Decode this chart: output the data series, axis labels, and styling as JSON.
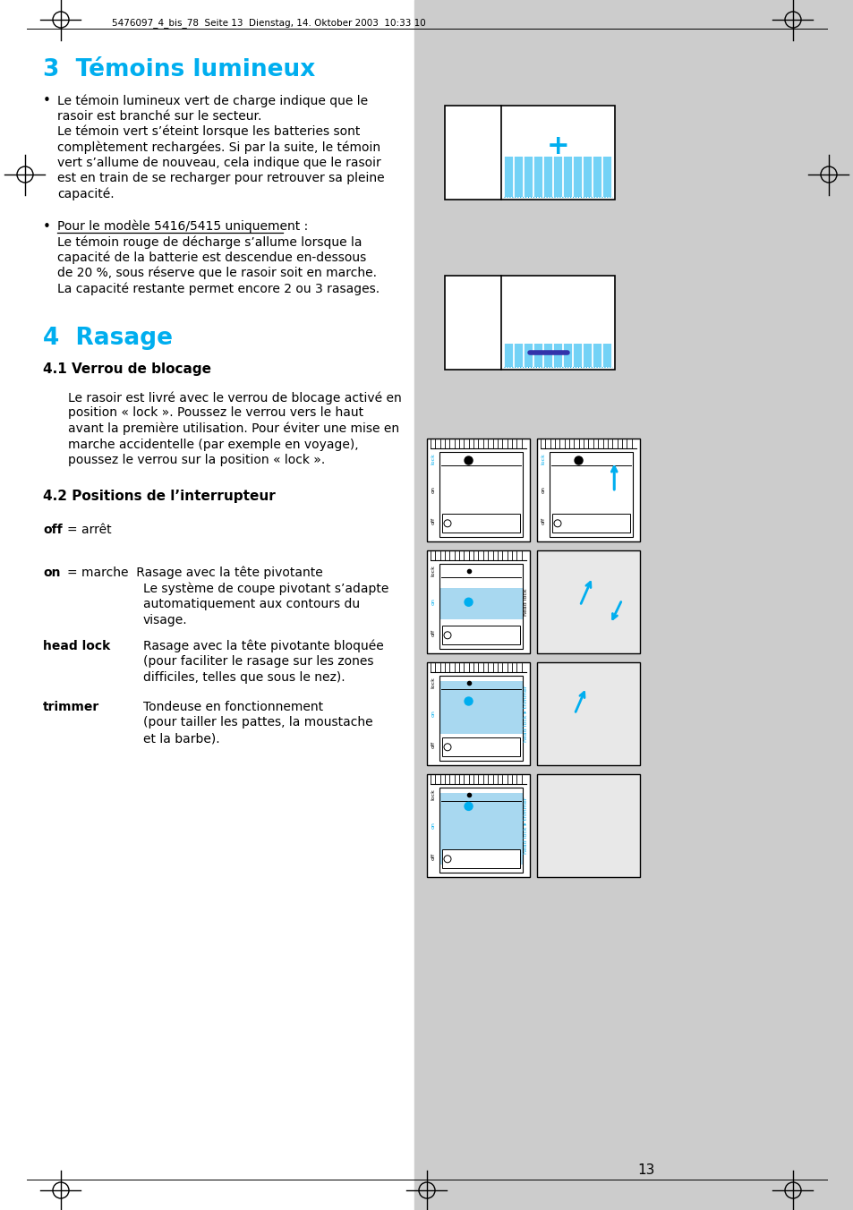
{
  "page_bg": "#ffffff",
  "right_panel_bg": "#cccccc",
  "cyan": "#00aeef",
  "black": "#000000",
  "header": "5476097_4_bis_78  Seite 13  Dienstag, 14. Oktober 2003  10:33 10",
  "page_number": "13",
  "title3": "3  Témoins lumineux",
  "title4": "4  Rasage",
  "sub41": "4.1 Verrou de blocage",
  "sub42": "4.2 Positions de l’interrupteur",
  "b1": [
    "Le témoin lumineux vert de charge indique que le",
    "rasoir est branché sur le secteur.",
    "Le témoin vert s’éteint lorsque les batteries sont",
    "complètement rechargées. Si par la suite, le témoin",
    "vert s’allume de nouveau, cela indique que le rasoir",
    "est en train de se recharger pour retrouver sa pleine",
    "capacité."
  ],
  "b2_line0": "Pour le modèle 5416/5415 uniquement :",
  "b2": [
    "Le témoin rouge de décharge s’allume lorsque la",
    "capacité de la batterie est descendue en-dessous",
    "de 20 %, sous réserve que le rasoir soit en marche.",
    "La capacité restante permet encore 2 ou 3 rasages."
  ],
  "verrou": [
    "Le rasoir est livré avec le verrou de blocage activé en",
    "position « lock ». Poussez le verrou vers le haut",
    "avant la première utilisation. Pour éviter une mise en",
    "marche accidentelle (par exemple en voyage),",
    "poussez le verrou sur la position « lock »."
  ],
  "pos_off": "arrêt",
  "pos_on1": "Rasage avec la tête pivotante",
  "pos_on2": "Le système de coupe pivotant s’adapte",
  "pos_on3": "automatiquement aux contours du",
  "pos_on4": "visage.",
  "pos_hl1": "Rasage avec la tête pivotante bloquée",
  "pos_hl2": "(pour faciliter le rasage sur les zones",
  "pos_hl3": "difficiles, telles que sous le nez).",
  "pos_tr1": "Tondeuse en fonctionnement",
  "pos_tr2": "(pour tailler les pattes, la moustache",
  "pos_tr3": "et la barbe)."
}
